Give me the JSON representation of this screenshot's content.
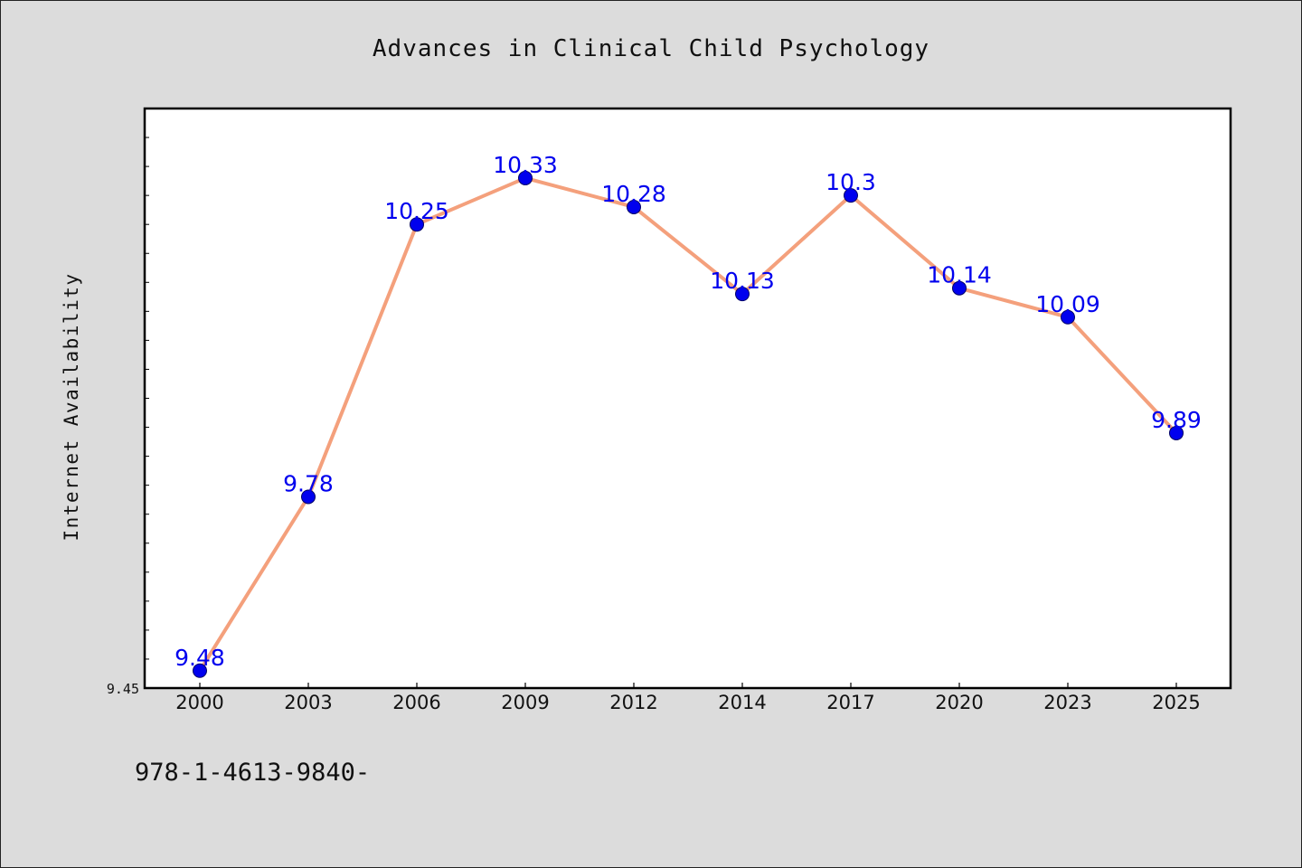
{
  "chart_data": {
    "type": "line",
    "title": "Advances in Clinical Child Psychology",
    "xlabel": "",
    "ylabel": "Internet Availability",
    "categories": [
      "2000",
      "2003",
      "2006",
      "2009",
      "2012",
      "2014",
      "2017",
      "2020",
      "2023",
      "2025"
    ],
    "series": [
      {
        "values": [
          9.48,
          9.78,
          10.25,
          10.33,
          10.28,
          10.13,
          10.3,
          10.14,
          10.09,
          9.89
        ],
        "data_labels": [
          "9.48",
          "9.78",
          "10.25",
          "10.33",
          "10.28",
          "10.13",
          "10.3",
          "10.14",
          "10.09",
          "9.89"
        ],
        "line_color": "#f4a07c",
        "marker_color": "#0000ee"
      }
    ],
    "ylim": [
      9.45,
      10.45
    ],
    "ytick_labels": [
      "9.45"
    ],
    "grid": false,
    "label_color": "#0000ee"
  },
  "footer_text": "978-1-4613-9840-"
}
